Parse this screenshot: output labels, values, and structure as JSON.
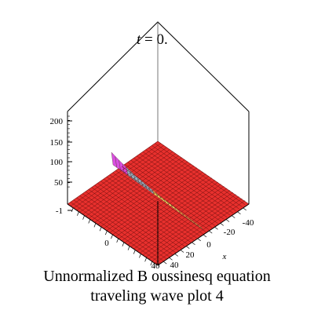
{
  "chart_data": {
    "type": "surface3d",
    "title_var": "t",
    "title_rest": " = 0.",
    "z_axis": {
      "ticks": [
        "200",
        "150",
        "100",
        "50",
        "-1"
      ]
    },
    "y_axis": {
      "ticks": [
        "0",
        "40"
      ]
    },
    "x_axis": {
      "label": "x",
      "ticks": [
        "-40",
        "-20",
        "0",
        "20",
        "40"
      ]
    },
    "surface": {
      "base_value": 0,
      "base_color": "#e8302d",
      "ridge_colors": [
        "#d845e0",
        "#f0e060",
        "#8ab8c8",
        "#f0b040"
      ],
      "ridge_peak_approx": 100
    },
    "caption": [
      "Unnormalized B oussinesq equation",
      "traveling wave plot 4"
    ]
  }
}
